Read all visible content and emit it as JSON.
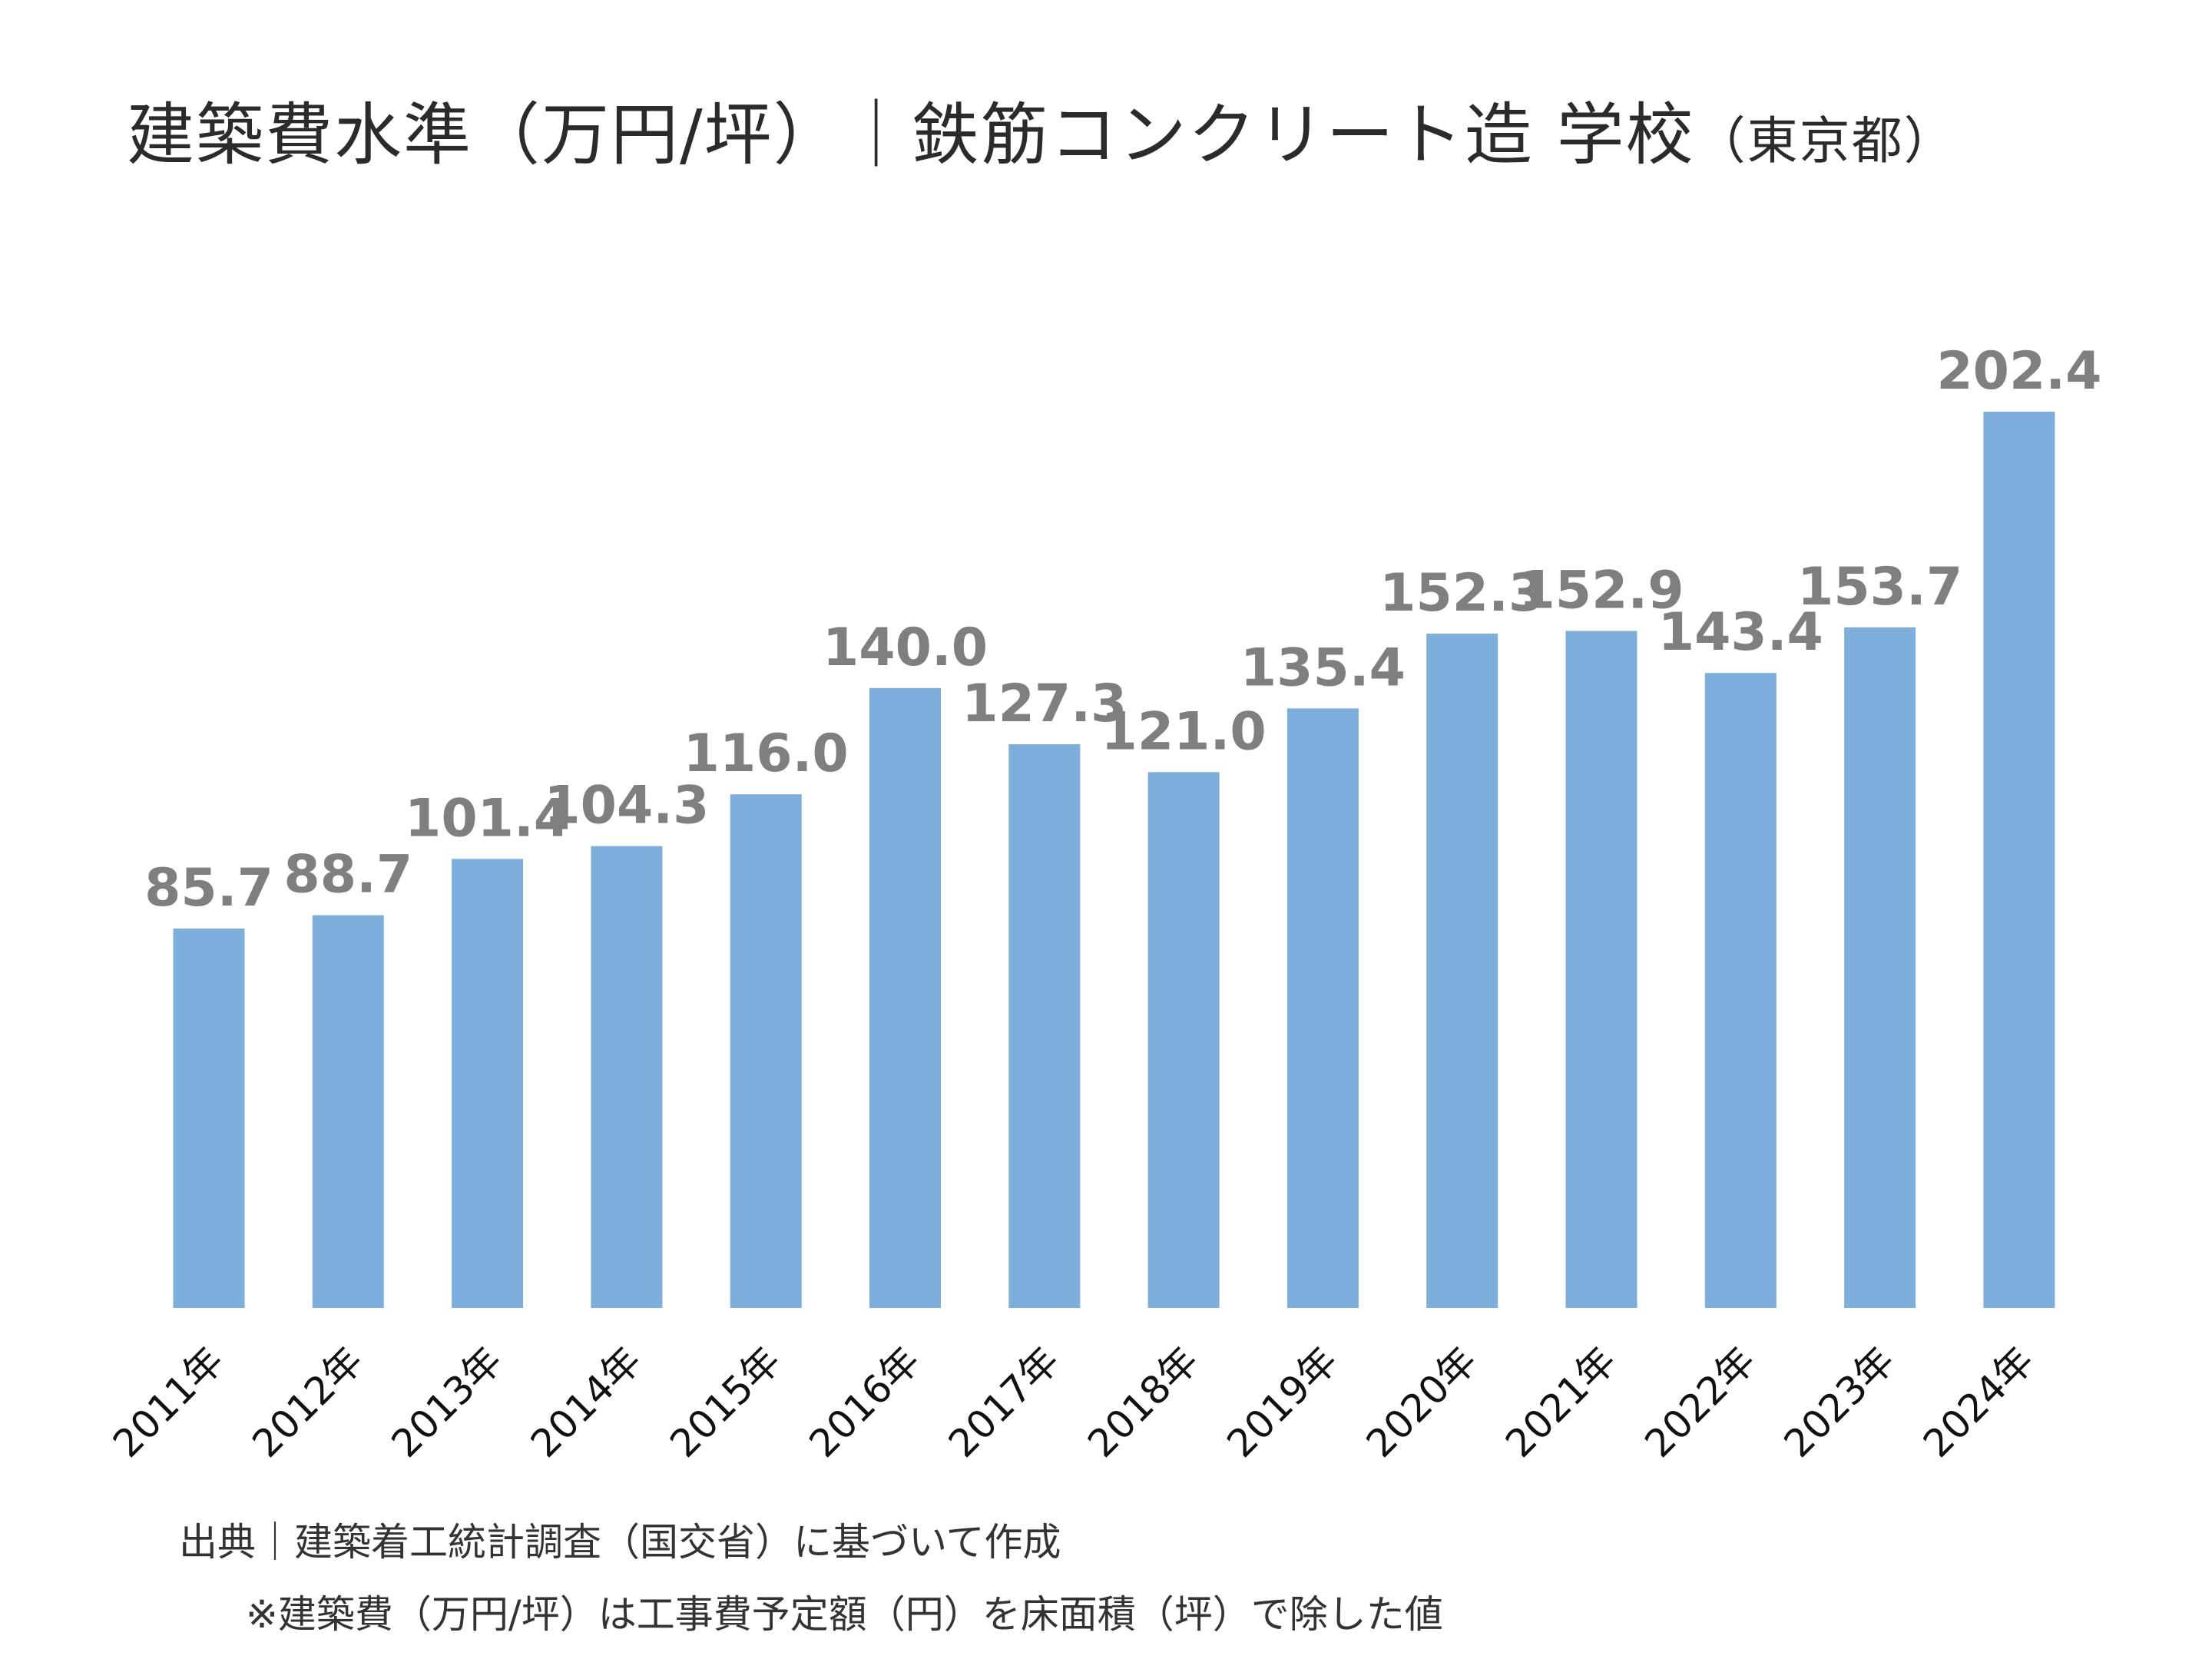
{
  "chart_data": {
    "type": "bar",
    "title": "建築費水準（万円/坪）｜鉄筋コンクリート造 学校",
    "subtitle": "（東京都）",
    "categories": [
      "2011年",
      "2012年",
      "2013年",
      "2014年",
      "2015年",
      "2016年",
      "2017年",
      "2018年",
      "2019年",
      "2020年",
      "2021年",
      "2022年",
      "2023年",
      "2024年"
    ],
    "values": [
      85.7,
      88.7,
      101.4,
      104.3,
      116.0,
      140.0,
      127.3,
      121.0,
      135.4,
      152.3,
      152.9,
      143.4,
      153.7,
      202.4
    ],
    "value_labels": [
      "85.7",
      "88.7",
      "101.4",
      "104.3",
      "116.0",
      "140.0",
      "127.3",
      "121.0",
      "135.4",
      "152.3",
      "152.9",
      "143.4",
      "153.7",
      "202.4"
    ],
    "ylim": [
      0,
      202.4
    ],
    "xlabel": "",
    "ylabel": "",
    "grid": false,
    "bar_color": "#7eaedb",
    "label_color": "#7f7f7f"
  },
  "notes": {
    "source": "出典｜建築着工統計調査（国交省）に基づいて作成",
    "method": "※建築費（万円/坪）は工事費予定額（円）を床面積（坪）で除した値"
  }
}
